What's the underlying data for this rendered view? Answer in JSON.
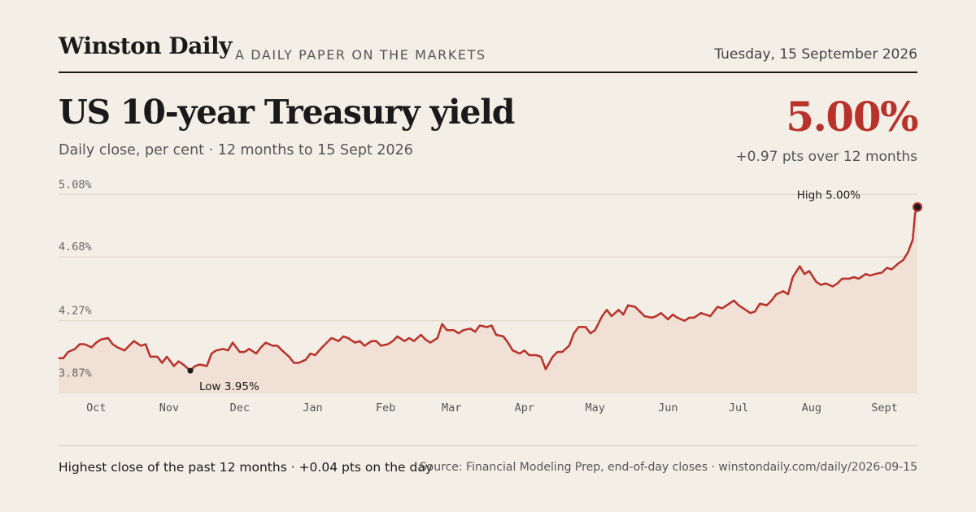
{
  "masthead": {
    "name": "Winston Daily",
    "tagline": "A DAILY PAPER ON THE MARKETS",
    "date": "Tuesday, 15 September 2026"
  },
  "headline": {
    "title": "US 10-year Treasury yield",
    "subtitle": "Daily close, per cent · 12 months to 15 Sept 2026"
  },
  "summary": {
    "value": "5.00%",
    "change": "+0.97 pts over 12 months"
  },
  "footer": {
    "note": "Highest close of the past 12 months · +0.04 pts on the day",
    "source": "Source: Financial Modeling Prep, end-of-day closes · winstondaily.com/daily/2026-09-15"
  },
  "colors": {
    "accent": "#b8312a",
    "area_fill": "#f0e0d5",
    "gridline": "#d9d1c4",
    "background": "#f4efe6"
  },
  "chart_data": {
    "type": "area",
    "title": "US 10-year Treasury yield",
    "ylabel": "Daily close, per cent",
    "ylim": [
      3.81,
      5.16
    ],
    "yticks": [
      "3.87%",
      "4.27%",
      "4.68%",
      "5.08%"
    ],
    "ytick_values": [
      3.87,
      4.27,
      4.68,
      5.08
    ],
    "xlim": [
      "2025-09-15",
      "2026-09-15"
    ],
    "xticks": [
      {
        "label": "Oct",
        "date": "2025-10-01"
      },
      {
        "label": "Nov",
        "date": "2025-11-01"
      },
      {
        "label": "Dec",
        "date": "2025-12-01"
      },
      {
        "label": "Jan",
        "date": "2026-01-01"
      },
      {
        "label": "Feb",
        "date": "2026-02-01"
      },
      {
        "label": "Mar",
        "date": "2026-03-01"
      },
      {
        "label": "Apr",
        "date": "2026-04-01"
      },
      {
        "label": "May",
        "date": "2026-05-01"
      },
      {
        "label": "Jun",
        "date": "2026-06-01"
      },
      {
        "label": "Jul",
        "date": "2026-07-01"
      },
      {
        "label": "Aug",
        "date": "2026-08-01"
      },
      {
        "label": "Sept",
        "date": "2026-09-01"
      }
    ],
    "grid": true,
    "series": [
      {
        "points": [
          [
            "2025-09-15",
            4.03
          ],
          [
            "2025-09-17",
            4.03
          ],
          [
            "2025-09-19",
            4.07
          ],
          [
            "2025-09-22",
            4.09
          ],
          [
            "2025-09-24",
            4.12
          ],
          [
            "2025-09-26",
            4.12
          ],
          [
            "2025-09-29",
            4.1
          ],
          [
            "2025-10-01",
            4.13
          ],
          [
            "2025-10-03",
            4.15
          ],
          [
            "2025-10-06",
            4.16
          ],
          [
            "2025-10-08",
            4.12
          ],
          [
            "2025-10-10",
            4.1
          ],
          [
            "2025-10-13",
            4.08
          ],
          [
            "2025-10-15",
            4.11
          ],
          [
            "2025-10-17",
            4.14
          ],
          [
            "2025-10-20",
            4.11
          ],
          [
            "2025-10-22",
            4.12
          ],
          [
            "2025-10-24",
            4.04
          ],
          [
            "2025-10-27",
            4.04
          ],
          [
            "2025-10-29",
            4.0
          ],
          [
            "2025-10-31",
            4.04
          ],
          [
            "2025-11-03",
            3.98
          ],
          [
            "2025-11-05",
            4.01
          ],
          [
            "2025-11-07",
            3.99
          ],
          [
            "2025-11-10",
            3.95
          ],
          [
            "2025-11-12",
            3.98
          ],
          [
            "2025-11-14",
            3.99
          ],
          [
            "2025-11-17",
            3.98
          ],
          [
            "2025-11-19",
            4.06
          ],
          [
            "2025-11-21",
            4.08
          ],
          [
            "2025-11-24",
            4.09
          ],
          [
            "2025-11-26",
            4.08
          ],
          [
            "2025-11-28",
            4.13
          ],
          [
            "2025-12-01",
            4.07
          ],
          [
            "2025-12-03",
            4.07
          ],
          [
            "2025-12-05",
            4.09
          ],
          [
            "2025-12-08",
            4.06
          ],
          [
            "2025-12-10",
            4.1
          ],
          [
            "2025-12-12",
            4.13
          ],
          [
            "2025-12-15",
            4.11
          ],
          [
            "2025-12-17",
            4.11
          ],
          [
            "2025-12-19",
            4.08
          ],
          [
            "2025-12-22",
            4.04
          ],
          [
            "2025-12-24",
            4.0
          ],
          [
            "2025-12-26",
            4.0
          ],
          [
            "2025-12-29",
            4.02
          ],
          [
            "2025-12-31",
            4.06
          ],
          [
            "2026-01-02",
            4.05
          ],
          [
            "2026-01-05",
            4.1
          ],
          [
            "2026-01-07",
            4.13
          ],
          [
            "2026-01-09",
            4.16
          ],
          [
            "2026-01-12",
            4.14
          ],
          [
            "2026-01-14",
            4.17
          ],
          [
            "2026-01-16",
            4.16
          ],
          [
            "2026-01-19",
            4.13
          ],
          [
            "2026-01-21",
            4.14
          ],
          [
            "2026-01-23",
            4.11
          ],
          [
            "2026-01-26",
            4.14
          ],
          [
            "2026-01-28",
            4.14
          ],
          [
            "2026-01-30",
            4.11
          ],
          [
            "2026-02-02",
            4.12
          ],
          [
            "2026-02-04",
            4.14
          ],
          [
            "2026-02-06",
            4.17
          ],
          [
            "2026-02-09",
            4.14
          ],
          [
            "2026-02-11",
            4.16
          ],
          [
            "2026-02-13",
            4.14
          ],
          [
            "2026-02-16",
            4.18
          ],
          [
            "2026-02-18",
            4.15
          ],
          [
            "2026-02-20",
            4.13
          ],
          [
            "2026-02-23",
            4.16
          ],
          [
            "2026-02-25",
            4.25
          ],
          [
            "2026-02-27",
            4.21
          ],
          [
            "2026-03-02",
            4.21
          ],
          [
            "2026-03-04",
            4.19
          ],
          [
            "2026-03-06",
            4.21
          ],
          [
            "2026-03-09",
            4.22
          ],
          [
            "2026-03-11",
            4.2
          ],
          [
            "2026-03-13",
            4.24
          ],
          [
            "2026-03-16",
            4.23
          ],
          [
            "2026-03-18",
            4.24
          ],
          [
            "2026-03-20",
            4.18
          ],
          [
            "2026-03-23",
            4.17
          ],
          [
            "2026-03-25",
            4.13
          ],
          [
            "2026-03-27",
            4.08
          ],
          [
            "2026-03-30",
            4.06
          ],
          [
            "2026-04-01",
            4.08
          ],
          [
            "2026-04-03",
            4.05
          ],
          [
            "2026-04-06",
            4.05
          ],
          [
            "2026-04-08",
            4.04
          ],
          [
            "2026-04-10",
            3.96
          ],
          [
            "2026-04-13",
            4.04
          ],
          [
            "2026-04-15",
            4.07
          ],
          [
            "2026-04-17",
            4.07
          ],
          [
            "2026-04-20",
            4.11
          ],
          [
            "2026-04-22",
            4.19
          ],
          [
            "2026-04-24",
            4.23
          ],
          [
            "2026-04-27",
            4.23
          ],
          [
            "2026-04-29",
            4.19
          ],
          [
            "2026-05-01",
            4.21
          ],
          [
            "2026-05-04",
            4.3
          ],
          [
            "2026-05-06",
            4.34
          ],
          [
            "2026-05-08",
            4.3
          ],
          [
            "2026-05-11",
            4.34
          ],
          [
            "2026-05-13",
            4.31
          ],
          [
            "2026-05-15",
            4.37
          ],
          [
            "2026-05-18",
            4.36
          ],
          [
            "2026-05-20",
            4.33
          ],
          [
            "2026-05-22",
            4.3
          ],
          [
            "2026-05-25",
            4.29
          ],
          [
            "2026-05-27",
            4.3
          ],
          [
            "2026-05-29",
            4.32
          ],
          [
            "2026-06-01",
            4.28
          ],
          [
            "2026-06-03",
            4.31
          ],
          [
            "2026-06-05",
            4.29
          ],
          [
            "2026-06-08",
            4.27
          ],
          [
            "2026-06-10",
            4.29
          ],
          [
            "2026-06-12",
            4.29
          ],
          [
            "2026-06-15",
            4.32
          ],
          [
            "2026-06-17",
            4.31
          ],
          [
            "2026-06-19",
            4.3
          ],
          [
            "2026-06-22",
            4.36
          ],
          [
            "2026-06-24",
            4.35
          ],
          [
            "2026-06-26",
            4.37
          ],
          [
            "2026-06-29",
            4.4
          ],
          [
            "2026-07-01",
            4.37
          ],
          [
            "2026-07-03",
            4.35
          ],
          [
            "2026-07-06",
            4.32
          ],
          [
            "2026-07-08",
            4.33
          ],
          [
            "2026-07-10",
            4.38
          ],
          [
            "2026-07-13",
            4.37
          ],
          [
            "2026-07-15",
            4.4
          ],
          [
            "2026-07-17",
            4.44
          ],
          [
            "2026-07-20",
            4.46
          ],
          [
            "2026-07-22",
            4.44
          ],
          [
            "2026-07-24",
            4.55
          ],
          [
            "2026-07-27",
            4.62
          ],
          [
            "2026-07-29",
            4.57
          ],
          [
            "2026-07-31",
            4.59
          ],
          [
            "2026-08-03",
            4.52
          ],
          [
            "2026-08-05",
            4.5
          ],
          [
            "2026-08-07",
            4.51
          ],
          [
            "2026-08-10",
            4.49
          ],
          [
            "2026-08-12",
            4.51
          ],
          [
            "2026-08-14",
            4.54
          ],
          [
            "2026-08-17",
            4.54
          ],
          [
            "2026-08-19",
            4.55
          ],
          [
            "2026-08-21",
            4.54
          ],
          [
            "2026-08-24",
            4.57
          ],
          [
            "2026-08-26",
            4.56
          ],
          [
            "2026-08-28",
            4.57
          ],
          [
            "2026-08-31",
            4.58
          ],
          [
            "2026-09-02",
            4.61
          ],
          [
            "2026-09-04",
            4.6
          ],
          [
            "2026-09-07",
            4.64
          ],
          [
            "2026-09-09",
            4.66
          ],
          [
            "2026-09-11",
            4.71
          ],
          [
            "2026-09-13",
            4.79
          ],
          [
            "2026-09-14",
            4.96
          ],
          [
            "2026-09-15",
            5.0
          ]
        ]
      }
    ],
    "annotations": [
      {
        "type": "low",
        "label": "Low 3.95%",
        "date": "2025-11-10",
        "value": 3.95
      },
      {
        "type": "high",
        "label": "High 5.00%",
        "date": "2026-09-15",
        "value": 5.0
      }
    ]
  }
}
